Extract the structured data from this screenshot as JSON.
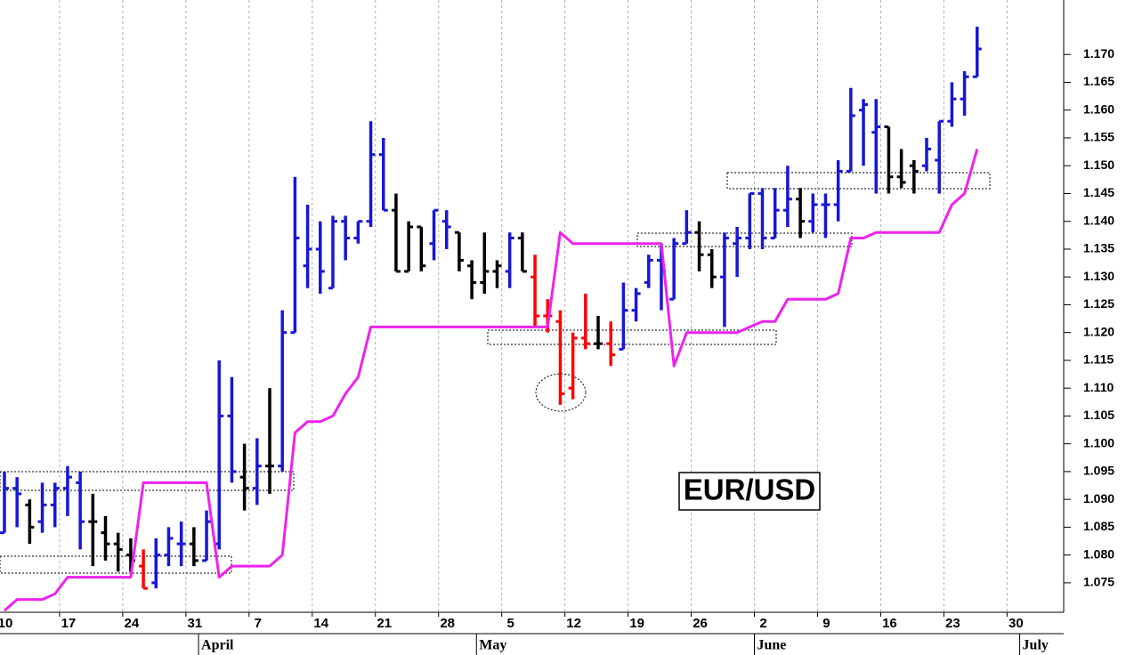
{
  "chart_data": {
    "type": "ohlc",
    "annotation": "EUR/USD",
    "categories": [
      "10",
      null,
      null,
      null,
      null,
      "17",
      null,
      null,
      null,
      null,
      "24",
      null,
      null,
      null,
      null,
      "31",
      null,
      null,
      null,
      null,
      "7",
      null,
      null,
      null,
      null,
      "14",
      null,
      null,
      null,
      null,
      "21",
      null,
      null,
      null,
      null,
      "28",
      null,
      null,
      null,
      null,
      "5",
      null,
      null,
      null,
      null,
      "12",
      null,
      null,
      null,
      null,
      "19",
      null,
      null,
      null,
      null,
      "26",
      null,
      null,
      null,
      null,
      "2",
      null,
      null,
      null,
      null,
      "9",
      null,
      null,
      null,
      null,
      "16",
      null,
      null,
      null,
      null,
      "23",
      null,
      null,
      null,
      null,
      "30",
      null,
      null,
      null
    ],
    "months": [
      null,
      null,
      null,
      null,
      null,
      null,
      null,
      null,
      null,
      null,
      null,
      null,
      null,
      null,
      null,
      null,
      "April",
      null,
      null,
      null,
      null,
      null,
      null,
      null,
      null,
      null,
      null,
      null,
      null,
      null,
      null,
      null,
      null,
      null,
      null,
      null,
      null,
      null,
      "May",
      null,
      null,
      null,
      null,
      null,
      null,
      null,
      null,
      null,
      null,
      null,
      null,
      null,
      null,
      null,
      null,
      null,
      null,
      null,
      null,
      null,
      "June",
      null,
      null,
      null,
      null,
      null,
      null,
      null,
      null,
      null,
      null,
      null,
      null,
      null,
      null,
      null,
      null,
      null,
      null,
      null,
      null,
      "July",
      null,
      null
    ],
    "open": [
      1.084,
      1.092,
      1.089,
      1.086,
      1.089,
      1.092,
      1.093,
      1.086,
      1.084,
      1.082,
      1.08,
      1.078,
      1.075,
      1.08,
      1.082,
      1.082,
      1.079,
      1.082,
      1.105,
      1.094,
      1.092,
      1.096,
      1.096,
      1.12,
      1.132,
      1.135,
      1.128,
      1.14,
      1.137,
      1.14,
      1.152,
      1.142,
      1.131,
      1.139,
      1.136,
      1.14,
      1.138,
      1.132,
      1.129,
      1.131,
      1.131,
      1.137,
      1.13,
      1.123,
      1.122,
      1.11,
      1.119,
      1.118,
      1.118,
      1.117,
      1.124,
      1.129,
      1.133,
      1.126,
      1.136,
      1.138,
      1.134,
      1.13,
      1.136,
      1.137,
      1.145,
      1.137,
      1.142,
      1.144,
      1.14,
      1.143,
      1.143,
      1.149,
      1.16,
      1.156,
      1.157,
      1.148,
      1.15,
      1.15,
      1.151,
      1.158,
      1.162,
      1.166,
      null,
      null,
      null,
      null,
      null,
      null
    ],
    "high": [
      1.095,
      1.094,
      1.09,
      1.093,
      1.093,
      1.096,
      1.095,
      1.091,
      1.087,
      1.084,
      1.083,
      1.081,
      1.083,
      1.085,
      1.086,
      1.085,
      1.088,
      1.115,
      1.112,
      1.1,
      1.101,
      1.11,
      1.124,
      1.148,
      1.143,
      1.14,
      1.141,
      1.141,
      1.14,
      1.158,
      1.155,
      1.145,
      1.14,
      1.139,
      1.142,
      1.142,
      1.138,
      1.133,
      1.138,
      1.133,
      1.138,
      1.138,
      1.134,
      1.126,
      1.124,
      1.12,
      1.127,
      1.123,
      1.122,
      1.129,
      1.128,
      1.134,
      1.136,
      1.137,
      1.142,
      1.14,
      1.135,
      1.138,
      1.139,
      1.145,
      1.146,
      1.146,
      1.15,
      1.146,
      1.145,
      1.145,
      1.151,
      1.164,
      1.162,
      1.162,
      1.157,
      1.153,
      1.151,
      1.155,
      1.158,
      1.165,
      1.167,
      1.175,
      null,
      null,
      null,
      null,
      null,
      null
    ],
    "low": [
      1.084,
      1.085,
      1.082,
      1.084,
      1.085,
      1.087,
      1.081,
      1.078,
      1.079,
      1.077,
      1.077,
      1.074,
      1.074,
      1.078,
      1.078,
      1.078,
      1.079,
      1.081,
      1.093,
      1.088,
      1.089,
      1.091,
      1.095,
      1.12,
      1.128,
      1.127,
      1.128,
      1.133,
      1.136,
      1.139,
      1.142,
      1.131,
      1.131,
      1.131,
      1.133,
      1.135,
      1.131,
      1.126,
      1.127,
      1.128,
      1.128,
      1.131,
      1.121,
      1.12,
      1.107,
      1.108,
      1.117,
      1.117,
      1.114,
      1.117,
      1.122,
      1.128,
      1.124,
      1.126,
      1.136,
      1.131,
      1.128,
      1.121,
      1.13,
      1.135,
      1.135,
      1.137,
      1.139,
      1.137,
      1.138,
      1.137,
      1.14,
      1.149,
      1.15,
      1.145,
      1.145,
      1.146,
      1.145,
      1.149,
      1.145,
      1.157,
      1.159,
      1.166,
      null,
      null,
      null,
      null,
      null,
      null
    ],
    "close": [
      1.092,
      1.091,
      1.085,
      1.089,
      1.092,
      1.094,
      1.086,
      1.086,
      1.082,
      1.081,
      1.079,
      1.074,
      1.08,
      1.083,
      1.082,
      1.079,
      1.086,
      1.105,
      1.095,
      1.092,
      1.096,
      1.096,
      1.12,
      1.137,
      1.135,
      1.131,
      1.14,
      1.137,
      1.14,
      1.152,
      1.142,
      1.131,
      1.139,
      1.132,
      1.142,
      1.139,
      1.133,
      1.129,
      1.131,
      1.132,
      1.137,
      1.131,
      1.123,
      1.123,
      1.109,
      1.119,
      1.118,
      1.118,
      1.116,
      1.124,
      1.127,
      1.133,
      1.131,
      1.136,
      1.138,
      1.134,
      1.13,
      1.137,
      1.137,
      1.145,
      1.137,
      1.142,
      1.144,
      1.14,
      1.143,
      1.143,
      1.149,
      1.159,
      1.161,
      1.157,
      1.148,
      1.147,
      1.149,
      1.153,
      1.158,
      1.162,
      1.166,
      1.171,
      null,
      null,
      null,
      null,
      null,
      null
    ],
    "colors": [
      "#1717d4",
      "#1717d4",
      "#000000",
      "#1717d4",
      "#1717d4",
      "#1717d4",
      "#1717d4",
      "#000000",
      "#000000",
      "#000000",
      "#000000",
      "#ff0000",
      "#1717d4",
      "#1717d4",
      "#1717d4",
      "#000000",
      "#1717d4",
      "#1717d4",
      "#1717d4",
      "#000000",
      "#1717d4",
      "#000000",
      "#1717d4",
      "#1717d4",
      "#1717d4",
      "#1717d4",
      "#1717d4",
      "#1717d4",
      "#1717d4",
      "#1717d4",
      "#1717d4",
      "#000000",
      "#000000",
      "#000000",
      "#1717d4",
      "#1717d4",
      "#000000",
      "#000000",
      "#000000",
      "#000000",
      "#1717d4",
      "#000000",
      "#ff0000",
      "#ff0000",
      "#ff0000",
      "#ff0000",
      "#ff0000",
      "#000000",
      "#ff0000",
      "#1717d4",
      "#1717d4",
      "#1717d4",
      "#1717d4",
      "#1717d4",
      "#1717d4",
      "#000000",
      "#000000",
      "#1717d4",
      "#1717d4",
      "#1717d4",
      "#1717d4",
      "#1717d4",
      "#1717d4",
      "#000000",
      "#1717d4",
      "#1717d4",
      "#1717d4",
      "#1717d4",
      "#1717d4",
      "#1717d4",
      "#000000",
      "#000000",
      "#000000",
      "#1717d4",
      "#1717d4",
      "#1717d4",
      "#1717d4",
      "#1717d4",
      null,
      null,
      null,
      null,
      null,
      null
    ],
    "stop_line": {
      "color": "#ee22ee",
      "values": [
        1.07,
        1.072,
        1.072,
        1.072,
        1.073,
        1.076,
        1.076,
        1.076,
        1.076,
        1.076,
        1.076,
        1.093,
        1.093,
        1.093,
        1.093,
        1.093,
        1.093,
        1.076,
        1.078,
        1.078,
        1.078,
        1.078,
        1.08,
        1.102,
        1.104,
        1.104,
        1.105,
        1.109,
        1.112,
        1.121,
        1.121,
        1.121,
        1.121,
        1.121,
        1.121,
        1.121,
        1.121,
        1.121,
        1.121,
        1.121,
        1.121,
        1.121,
        1.121,
        1.121,
        1.138,
        1.136,
        1.136,
        1.136,
        1.136,
        1.136,
        1.136,
        1.136,
        1.136,
        1.114,
        1.12,
        1.12,
        1.12,
        1.12,
        1.12,
        1.121,
        1.122,
        1.122,
        1.126,
        1.126,
        1.126,
        1.126,
        1.127,
        1.137,
        1.137,
        1.138,
        1.138,
        1.138,
        1.138,
        1.138,
        1.138,
        1.143,
        1.145,
        1.153,
        null,
        null,
        null,
        null,
        null,
        null
      ]
    },
    "ylim": [
      1.0697,
      1.1798
    ],
    "yticks": [
      1.075,
      {
        "value": 1.08,
        "label": "1.080"
      },
      1.085,
      {
        "value": 1.09,
        "label": "1.090"
      },
      1.095,
      {
        "value": 1.1,
        "label": "1.100"
      },
      1.105,
      {
        "value": 1.11,
        "label": "1.110"
      },
      1.115,
      {
        "value": 1.12,
        "label": "1.120"
      },
      1.125,
      {
        "value": 1.13,
        "label": "1.130"
      },
      1.135,
      {
        "value": 1.14,
        "label": "1.140"
      },
      1.145,
      {
        "value": 1.15,
        "label": "1.150"
      },
      1.155,
      {
        "value": 1.16,
        "label": "1.160"
      },
      1.165,
      {
        "value": 1.17,
        "label": "1.170"
      }
    ],
    "grid": true
  }
}
